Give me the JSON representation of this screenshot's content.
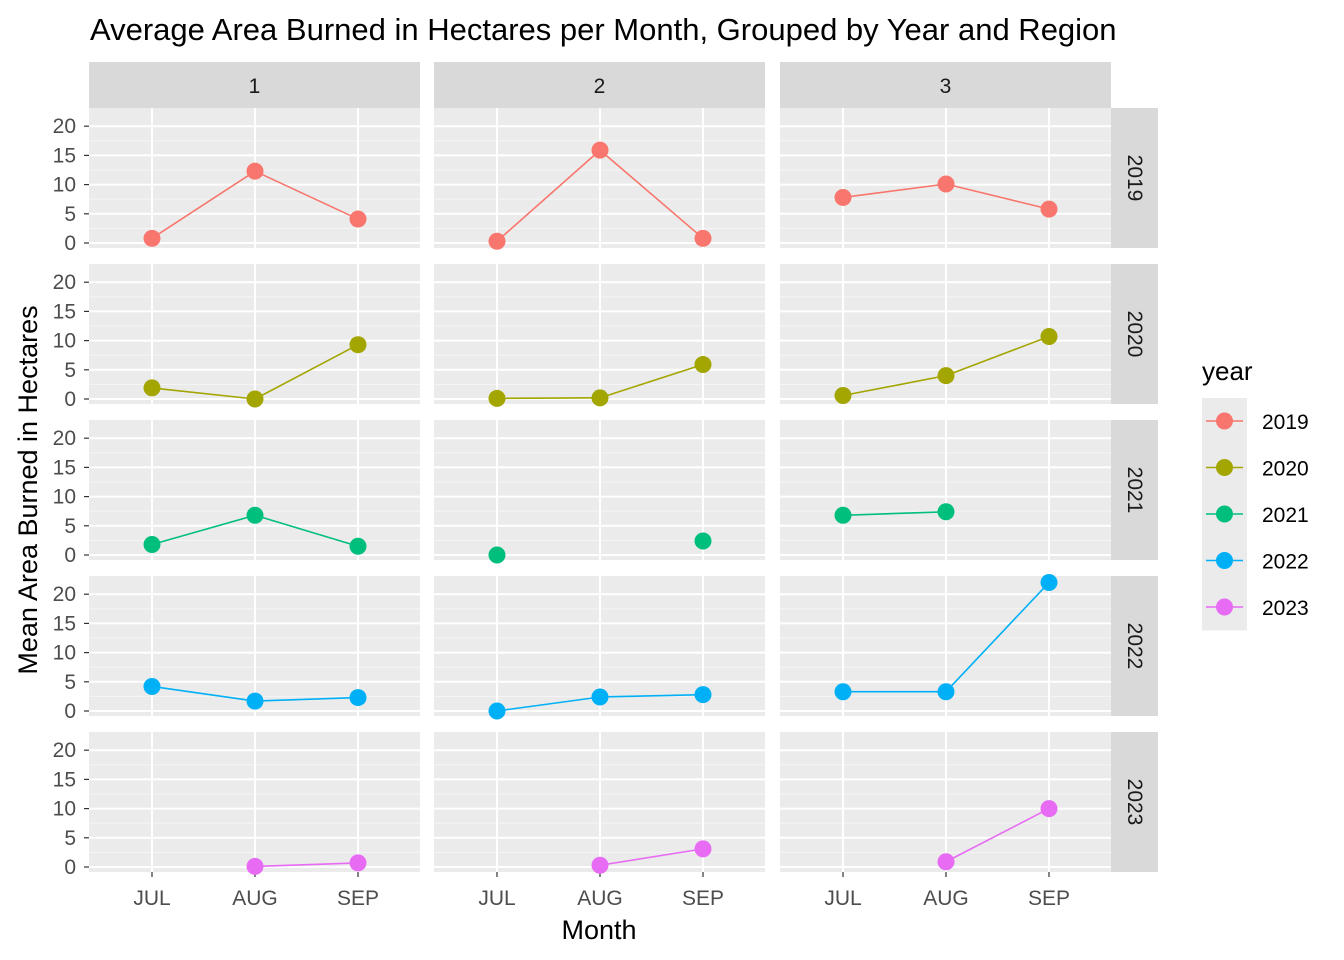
{
  "chart_data": {
    "type": "line",
    "title": "Average Area Burned in Hectares per Month, Grouped by Year and Region",
    "xlabel": "Month",
    "ylabel": "Mean Area Burned in Hectares",
    "categories": [
      "JUL",
      "AUG",
      "SEP"
    ],
    "y_ticks": [
      "0",
      "5",
      "10",
      "15",
      "20"
    ],
    "ylim": [
      0,
      22
    ],
    "grid": true,
    "facet_cols": [
      "1",
      "2",
      "3"
    ],
    "facet_rows": [
      "2019",
      "2020",
      "2021",
      "2022",
      "2023"
    ],
    "legend": {
      "title": "year",
      "placement": "right",
      "entries": [
        "2019",
        "2020",
        "2021",
        "2022",
        "2023"
      ]
    },
    "colors": {
      "2019": "#F8766D",
      "2020": "#A3A500",
      "2021": "#00BF7D",
      "2022": "#00B0F6",
      "2023": "#E76BF3"
    },
    "panels": [
      {
        "region": "1",
        "year": "2019",
        "values": [
          0.8,
          12.3,
          4.1
        ]
      },
      {
        "region": "2",
        "year": "2019",
        "values": [
          0.3,
          15.9,
          0.8
        ]
      },
      {
        "region": "3",
        "year": "2019",
        "values": [
          7.8,
          10.1,
          5.8
        ]
      },
      {
        "region": "1",
        "year": "2020",
        "values": [
          1.9,
          0.0,
          9.3
        ]
      },
      {
        "region": "2",
        "year": "2020",
        "values": [
          0.1,
          0.2,
          5.9
        ]
      },
      {
        "region": "3",
        "year": "2020",
        "values": [
          0.6,
          4.0,
          10.7
        ]
      },
      {
        "region": "1",
        "year": "2021",
        "values": [
          1.8,
          6.8,
          1.5
        ]
      },
      {
        "region": "2",
        "year": "2021",
        "values": [
          0.0,
          null,
          2.4
        ]
      },
      {
        "region": "3",
        "year": "2021",
        "values": [
          6.8,
          7.4,
          null
        ]
      },
      {
        "region": "1",
        "year": "2022",
        "values": [
          4.2,
          1.7,
          2.3
        ]
      },
      {
        "region": "2",
        "year": "2022",
        "values": [
          0.0,
          2.4,
          2.8
        ]
      },
      {
        "region": "3",
        "year": "2022",
        "values": [
          3.3,
          3.3,
          22.0
        ]
      },
      {
        "region": "1",
        "year": "2023",
        "values": [
          null,
          0.1,
          0.7
        ]
      },
      {
        "region": "2",
        "year": "2023",
        "values": [
          null,
          0.3,
          3.1
        ]
      },
      {
        "region": "3",
        "year": "2023",
        "values": [
          null,
          0.9,
          10.0
        ]
      }
    ]
  }
}
